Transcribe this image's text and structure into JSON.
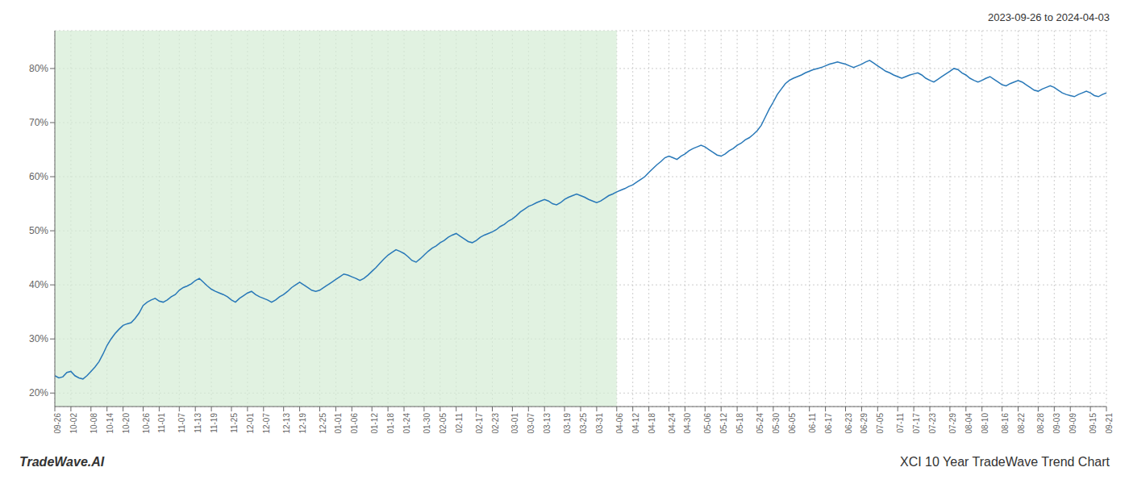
{
  "chart_data": {
    "type": "line",
    "title": "XCI 10 Year TradeWave Trend Chart",
    "subtitle": "2023-09-26 to 2024-04-03",
    "annotations": [
      "TradeWave.AI"
    ],
    "color": "#2878b8",
    "grid": true,
    "ylim": [
      0.175,
      0.87
    ],
    "yticks": [
      {
        "value": 0.2,
        "label": "20%"
      },
      {
        "value": 0.3,
        "label": "30%"
      },
      {
        "value": 0.4,
        "label": "40%"
      },
      {
        "value": 0.5,
        "label": "50%"
      },
      {
        "value": 0.6,
        "label": "60%"
      },
      {
        "value": 0.7,
        "label": "70%"
      },
      {
        "value": 0.8,
        "label": "80%"
      }
    ],
    "shaded_region": {
      "end": "04-06",
      "color": "#d4ecd4"
    },
    "categories": [
      "09-26",
      null,
      null,
      null,
      "10-02",
      null,
      null,
      null,
      null,
      "10-08",
      null,
      null,
      null,
      "10-14",
      null,
      null,
      null,
      "10-20",
      null,
      null,
      null,
      null,
      "10-26",
      null,
      null,
      null,
      "11-01",
      null,
      null,
      null,
      null,
      "11-07",
      null,
      null,
      null,
      "11-13",
      null,
      null,
      null,
      "11-19",
      null,
      null,
      null,
      null,
      "11-25",
      null,
      null,
      null,
      "12-01",
      null,
      null,
      null,
      "12-07",
      null,
      null,
      null,
      null,
      "12-13",
      null,
      null,
      null,
      "12-19",
      null,
      null,
      null,
      null,
      "12-25",
      null,
      null,
      null,
      "01-01",
      null,
      null,
      null,
      "01-06",
      null,
      null,
      null,
      null,
      "01-12",
      null,
      null,
      null,
      "01-18",
      null,
      null,
      null,
      "01-24",
      null,
      null,
      null,
      null,
      "01-30",
      null,
      null,
      null,
      "02-05",
      null,
      null,
      null,
      "02-11",
      null,
      null,
      null,
      null,
      "02-17",
      null,
      null,
      null,
      "02-23",
      null,
      null,
      null,
      null,
      "03-01",
      null,
      null,
      null,
      "03-07",
      null,
      null,
      null,
      "03-13",
      null,
      null,
      null,
      null,
      "03-19",
      null,
      null,
      null,
      "03-25",
      null,
      null,
      null,
      "03-31",
      null,
      null,
      null,
      null,
      "04-06",
      null,
      null,
      null,
      "04-12",
      null,
      null,
      null,
      "04-18",
      null,
      null,
      null,
      null,
      "04-24",
      null,
      null,
      null,
      "04-30",
      null,
      null,
      null,
      null,
      "05-06",
      null,
      null,
      null,
      "05-12",
      null,
      null,
      null,
      "05-18",
      null,
      null,
      null,
      null,
      "05-24",
      null,
      null,
      null,
      "05-30",
      null,
      null,
      null,
      "06-05",
      null,
      null,
      null,
      null,
      "06-11",
      null,
      null,
      null,
      "06-17",
      null,
      null,
      null,
      null,
      "06-23",
      null,
      null,
      null,
      "06-29",
      null,
      null,
      null,
      "07-05",
      null,
      null,
      null,
      null,
      "07-11",
      null,
      null,
      null,
      "07-17",
      null,
      null,
      null,
      "07-23",
      null,
      null,
      null,
      null,
      "07-29",
      null,
      null,
      null,
      "08-04",
      null,
      null,
      null,
      "08-10",
      null,
      null,
      null,
      null,
      "08-16",
      null,
      null,
      null,
      "08-22",
      null,
      null,
      null,
      null,
      "08-28",
      null,
      null,
      null,
      "09-03",
      null,
      null,
      null,
      "09-09",
      null,
      null,
      null,
      null,
      "09-15",
      null,
      null,
      null,
      "09-21"
    ],
    "values": [
      0.232,
      0.228,
      0.23,
      0.238,
      0.24,
      0.232,
      0.228,
      0.226,
      0.232,
      0.24,
      0.248,
      0.258,
      0.272,
      0.288,
      0.3,
      0.31,
      0.318,
      0.325,
      0.328,
      0.33,
      0.338,
      0.348,
      0.362,
      0.368,
      0.372,
      0.375,
      0.37,
      0.368,
      0.372,
      0.378,
      0.382,
      0.39,
      0.395,
      0.398,
      0.402,
      0.408,
      0.412,
      0.405,
      0.398,
      0.392,
      0.388,
      0.385,
      0.382,
      0.378,
      0.372,
      0.368,
      0.375,
      0.38,
      0.385,
      0.388,
      0.382,
      0.378,
      0.375,
      0.372,
      0.368,
      0.372,
      0.378,
      0.382,
      0.388,
      0.395,
      0.4,
      0.405,
      0.4,
      0.395,
      0.39,
      0.388,
      0.39,
      0.395,
      0.4,
      0.405,
      0.41,
      0.415,
      0.42,
      0.418,
      0.415,
      0.412,
      0.408,
      0.412,
      0.418,
      0.425,
      0.432,
      0.44,
      0.448,
      0.455,
      0.46,
      0.465,
      0.462,
      0.458,
      0.452,
      0.445,
      0.442,
      0.448,
      0.455,
      0.462,
      0.468,
      0.472,
      0.478,
      0.482,
      0.488,
      0.492,
      0.495,
      0.49,
      0.485,
      0.48,
      0.478,
      0.482,
      0.488,
      0.492,
      0.495,
      0.498,
      0.502,
      0.508,
      0.512,
      0.518,
      0.522,
      0.528,
      0.535,
      0.54,
      0.545,
      0.548,
      0.552,
      0.555,
      0.558,
      0.555,
      0.55,
      0.548,
      0.552,
      0.558,
      0.562,
      0.565,
      0.568,
      0.565,
      0.562,
      0.558,
      0.555,
      0.552,
      0.555,
      0.56,
      0.565,
      0.568,
      0.572,
      0.575,
      0.578,
      0.582,
      0.585,
      0.59,
      0.595,
      0.6,
      0.608,
      0.615,
      0.622,
      0.628,
      0.635,
      0.638,
      0.635,
      0.632,
      0.638,
      0.642,
      0.648,
      0.652,
      0.655,
      0.658,
      0.655,
      0.65,
      0.645,
      0.64,
      0.638,
      0.642,
      0.648,
      0.652,
      0.658,
      0.662,
      0.668,
      0.672,
      0.678,
      0.685,
      0.695,
      0.71,
      0.725,
      0.738,
      0.752,
      0.762,
      0.772,
      0.778,
      0.782,
      0.785,
      0.788,
      0.792,
      0.795,
      0.798,
      0.8,
      0.802,
      0.805,
      0.808,
      0.81,
      0.812,
      0.81,
      0.808,
      0.805,
      0.802,
      0.805,
      0.808,
      0.812,
      0.815,
      0.81,
      0.805,
      0.8,
      0.795,
      0.792,
      0.788,
      0.785,
      0.782,
      0.785,
      0.788,
      0.79,
      0.792,
      0.788,
      0.782,
      0.778,
      0.775,
      0.78,
      0.785,
      0.79,
      0.795,
      0.8,
      0.798,
      0.792,
      0.788,
      0.782,
      0.778,
      0.775,
      0.778,
      0.782,
      0.785,
      0.78,
      0.775,
      0.77,
      0.768,
      0.772,
      0.775,
      0.778,
      0.775,
      0.77,
      0.765,
      0.76,
      0.758,
      0.762,
      0.765,
      0.768,
      0.765,
      0.76,
      0.755,
      0.752,
      0.75,
      0.748,
      0.752,
      0.755,
      0.758,
      0.755,
      0.75,
      0.748,
      0.752,
      0.755
    ]
  }
}
